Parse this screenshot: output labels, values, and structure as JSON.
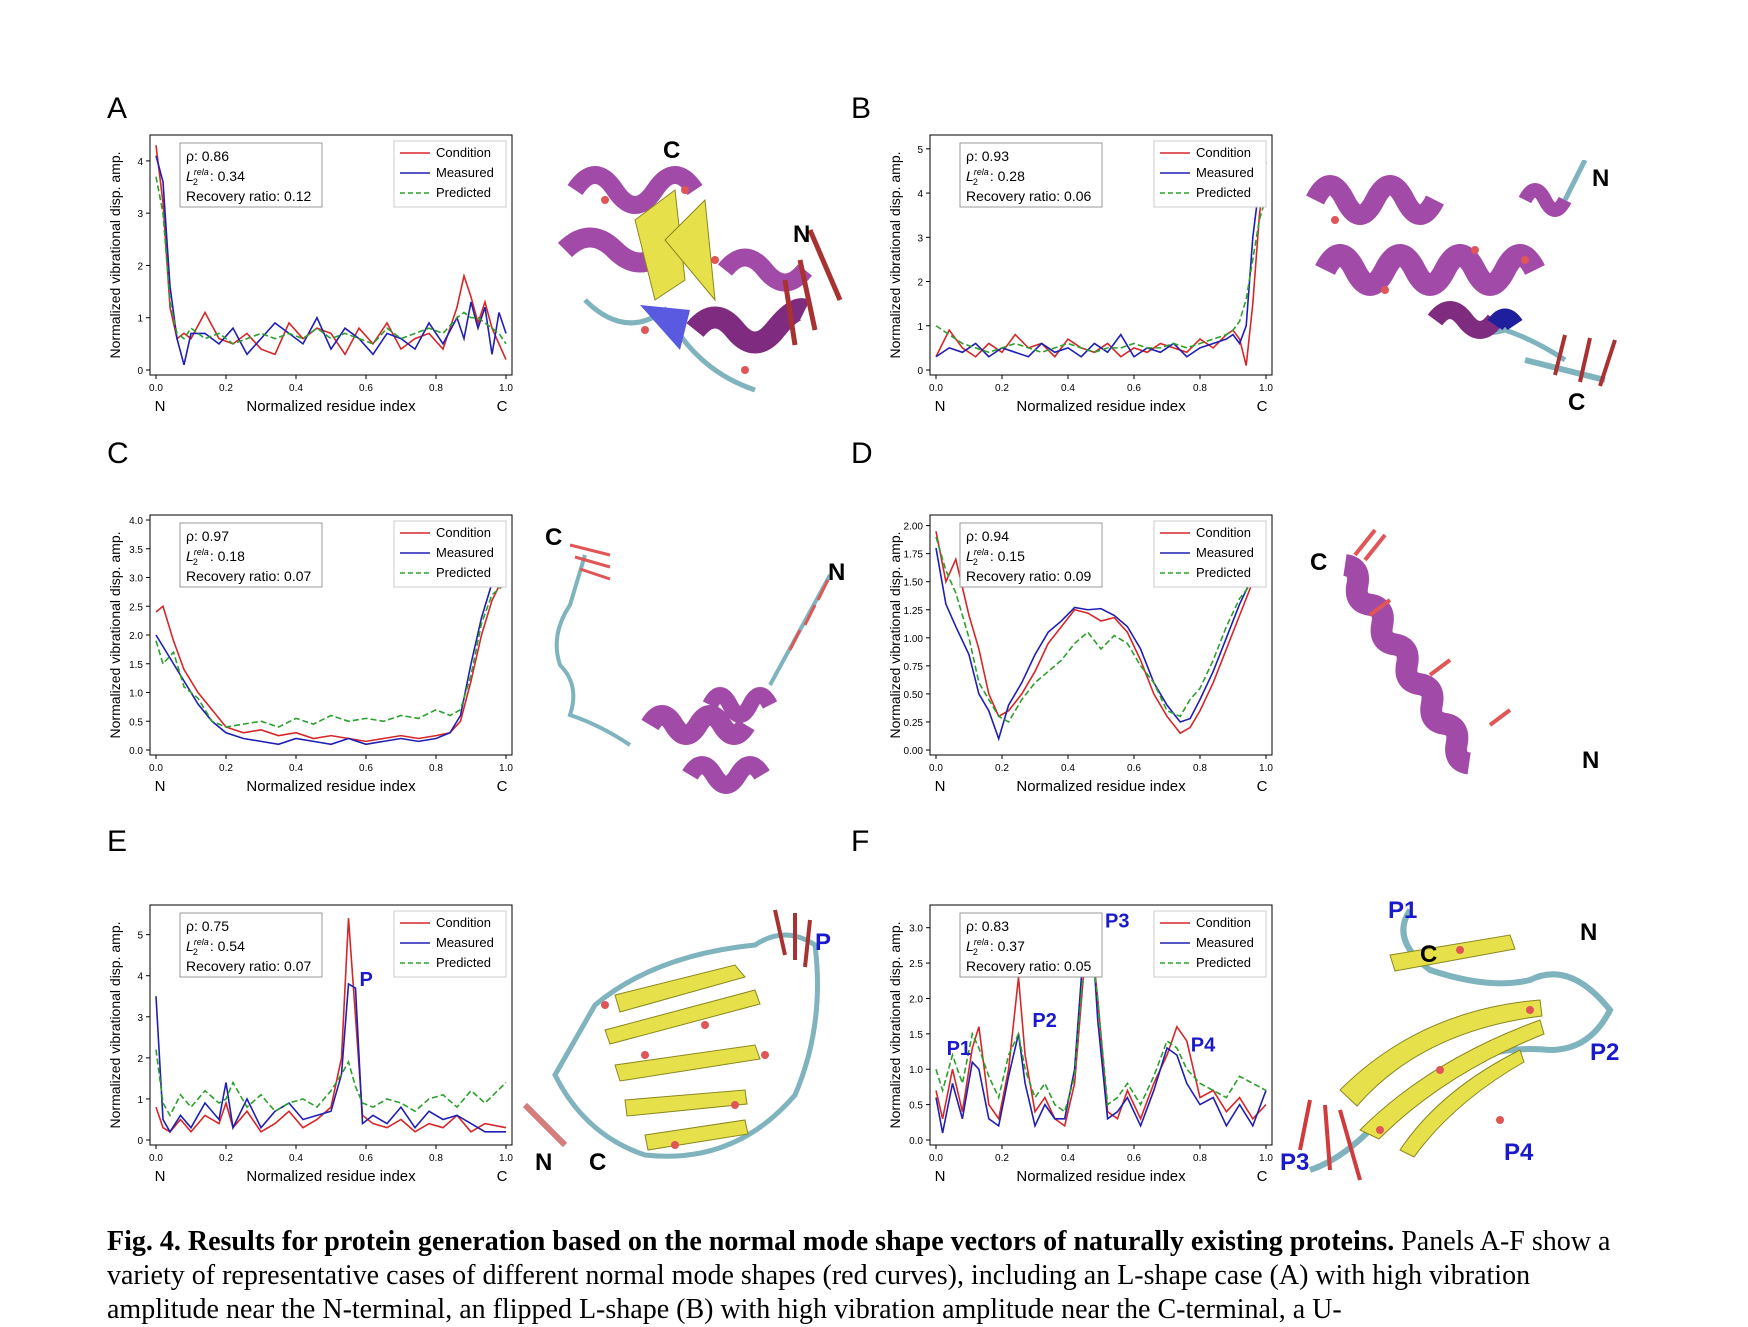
{
  "figure": {
    "caption_bold": "Fig. 4. Results for protein generation based on the normal mode shape vectors of naturally existing proteins.",
    "caption_text": " Panels A-F show a variety of representative cases of different normal mode shapes (red curves), including an L-shape case (A) with high vibration amplitude near the N-terminal, an flipped L-shape (B) with high vibration amplitude near the C-terminal, a U-"
  },
  "colors": {
    "condition": "#d62728",
    "measured": "#1f1fb4",
    "predicted": "#2ca02c",
    "helix": "#a24aa8",
    "sheet": "#e6e04a",
    "coil": "#7fb3bd",
    "arrow": "#e05555",
    "annot": "#1a1acc"
  },
  "panels": [
    {
      "letter": "A",
      "stats": {
        "rho": "ρ: 0.86",
        "l2": "0.34",
        "rec": "Recovery ratio: 0.12"
      },
      "legend": [
        "Condition",
        "Measured",
        "Predicted"
      ],
      "struct_labels": [
        "C",
        "N"
      ],
      "peak_labels": []
    },
    {
      "letter": "B",
      "stats": {
        "rho": "ρ: 0.93",
        "l2": "0.28",
        "rec": "Recovery ratio: 0.06"
      },
      "legend": [
        "Condition",
        "Measured",
        "Predicted"
      ],
      "struct_labels": [
        "N",
        "C"
      ],
      "peak_labels": []
    },
    {
      "letter": "C",
      "stats": {
        "rho": "ρ: 0.97",
        "l2": "0.18",
        "rec": "Recovery ratio: 0.07"
      },
      "legend": [
        "Condition",
        "Measured",
        "Predicted"
      ],
      "struct_labels": [
        "C",
        "N"
      ],
      "peak_labels": []
    },
    {
      "letter": "D",
      "stats": {
        "rho": "ρ: 0.94",
        "l2": "0.15",
        "rec": "Recovery ratio: 0.09"
      },
      "legend": [
        "Condition",
        "Measured",
        "Predicted"
      ],
      "struct_labels": [
        "C",
        "N"
      ],
      "peak_labels": []
    },
    {
      "letter": "E",
      "stats": {
        "rho": "ρ: 0.75",
        "l2": "0.54",
        "rec": "Recovery ratio: 0.07"
      },
      "legend": [
        "Condition",
        "Measured",
        "Predicted"
      ],
      "struct_labels": [
        "P",
        "N",
        "C"
      ],
      "peak_labels": [
        "P"
      ]
    },
    {
      "letter": "F",
      "stats": {
        "rho": "ρ: 0.83",
        "l2": "0.37",
        "rec": "Recovery ratio: 0.05"
      },
      "legend": [
        "Condition",
        "Measured",
        "Predicted"
      ],
      "struct_labels": [
        "P1",
        "C",
        "N",
        "P2",
        "P3",
        "P4"
      ],
      "peak_labels": [
        "P1",
        "P2",
        "P3",
        "P4"
      ]
    }
  ],
  "axis_common": {
    "ylabel": "Normalized vibrational disp. amp.",
    "xlabel": "Normalized residue index",
    "x_left": "N",
    "x_right": "C",
    "x_ticks": [
      "0.0",
      "0.2",
      "0.4",
      "0.6",
      "0.8",
      "1.0"
    ]
  },
  "chart_data": [
    {
      "type": "line",
      "panel": "A",
      "ylim": [
        0,
        4.4
      ],
      "y_ticks": [
        0,
        1,
        2,
        3,
        4
      ],
      "x": [
        0.0,
        0.02,
        0.04,
        0.06,
        0.08,
        0.1,
        0.14,
        0.18,
        0.22,
        0.26,
        0.3,
        0.34,
        0.38,
        0.42,
        0.46,
        0.5,
        0.54,
        0.58,
        0.62,
        0.66,
        0.7,
        0.74,
        0.78,
        0.82,
        0.86,
        0.88,
        0.9,
        0.92,
        0.94,
        0.96,
        0.98,
        1.0
      ],
      "series": [
        {
          "name": "Condition",
          "values": [
            4.3,
            3.2,
            1.2,
            0.6,
            0.7,
            0.6,
            1.1,
            0.6,
            0.5,
            0.7,
            0.4,
            0.3,
            0.9,
            0.6,
            0.8,
            0.7,
            0.3,
            0.8,
            0.5,
            0.9,
            0.4,
            0.6,
            0.7,
            0.4,
            1.2,
            1.8,
            1.4,
            0.9,
            1.3,
            0.8,
            0.5,
            0.2
          ]
        },
        {
          "name": "Measured",
          "values": [
            4.1,
            3.6,
            1.6,
            0.6,
            0.1,
            0.7,
            0.7,
            0.5,
            0.8,
            0.3,
            0.6,
            0.9,
            0.7,
            0.5,
            1.0,
            0.4,
            0.8,
            0.6,
            0.3,
            0.7,
            0.6,
            0.4,
            0.9,
            0.5,
            1.0,
            0.6,
            1.3,
            0.8,
            1.2,
            0.3,
            1.1,
            0.7
          ]
        },
        {
          "name": "Predicted",
          "values": [
            3.7,
            3.0,
            1.3,
            0.7,
            0.6,
            0.8,
            0.6,
            0.7,
            0.5,
            0.6,
            0.7,
            0.6,
            0.7,
            0.6,
            0.8,
            0.6,
            0.7,
            0.6,
            0.5,
            0.8,
            0.6,
            0.7,
            0.8,
            0.7,
            1.0,
            1.1,
            1.0,
            1.0,
            0.9,
            0.8,
            0.7,
            0.5
          ]
        }
      ]
    },
    {
      "type": "line",
      "panel": "B",
      "ylim": [
        0,
        5.2
      ],
      "y_ticks": [
        0,
        1,
        2,
        3,
        4,
        5
      ],
      "x": [
        0.0,
        0.04,
        0.08,
        0.12,
        0.16,
        0.2,
        0.24,
        0.28,
        0.32,
        0.36,
        0.4,
        0.44,
        0.48,
        0.52,
        0.56,
        0.6,
        0.64,
        0.68,
        0.72,
        0.76,
        0.8,
        0.84,
        0.88,
        0.9,
        0.92,
        0.94,
        0.96,
        0.98,
        1.0
      ],
      "series": [
        {
          "name": "Condition",
          "values": [
            0.3,
            0.9,
            0.5,
            0.3,
            0.6,
            0.4,
            0.8,
            0.5,
            0.6,
            0.3,
            0.7,
            0.5,
            0.4,
            0.6,
            0.3,
            0.5,
            0.4,
            0.6,
            0.5,
            0.4,
            0.7,
            0.5,
            0.8,
            0.9,
            0.7,
            0.1,
            1.5,
            3.5,
            4.7
          ]
        },
        {
          "name": "Measured",
          "values": [
            0.3,
            0.5,
            0.4,
            0.6,
            0.3,
            0.5,
            0.4,
            0.3,
            0.6,
            0.4,
            0.5,
            0.3,
            0.6,
            0.4,
            0.8,
            0.3,
            0.5,
            0.4,
            0.6,
            0.3,
            0.5,
            0.6,
            0.7,
            0.8,
            0.6,
            1.0,
            3.0,
            4.2,
            4.5
          ]
        },
        {
          "name": "Predicted",
          "values": [
            1.0,
            0.8,
            0.6,
            0.5,
            0.4,
            0.5,
            0.6,
            0.5,
            0.4,
            0.5,
            0.6,
            0.5,
            0.4,
            0.5,
            0.5,
            0.6,
            0.5,
            0.5,
            0.6,
            0.5,
            0.6,
            0.7,
            0.8,
            0.9,
            1.1,
            1.6,
            2.5,
            3.4,
            3.9
          ]
        }
      ]
    },
    {
      "type": "line",
      "panel": "C",
      "ylim": [
        0,
        4.0
      ],
      "y_ticks": [
        0.0,
        0.5,
        1.0,
        1.5,
        2.0,
        2.5,
        3.0,
        3.5,
        4.0
      ],
      "x": [
        0.0,
        0.02,
        0.05,
        0.08,
        0.12,
        0.16,
        0.2,
        0.25,
        0.3,
        0.35,
        0.4,
        0.45,
        0.5,
        0.55,
        0.6,
        0.65,
        0.7,
        0.75,
        0.8,
        0.84,
        0.87,
        0.9,
        0.93,
        0.96,
        1.0
      ],
      "series": [
        {
          "name": "Condition",
          "values": [
            2.4,
            2.5,
            1.9,
            1.4,
            1.0,
            0.7,
            0.4,
            0.3,
            0.35,
            0.25,
            0.3,
            0.2,
            0.25,
            0.2,
            0.15,
            0.2,
            0.25,
            0.2,
            0.25,
            0.3,
            0.5,
            1.2,
            2.0,
            2.6,
            3.1
          ]
        },
        {
          "name": "Measured",
          "values": [
            2.0,
            1.8,
            1.5,
            1.2,
            0.8,
            0.5,
            0.3,
            0.2,
            0.15,
            0.1,
            0.2,
            0.15,
            0.1,
            0.2,
            0.1,
            0.15,
            0.2,
            0.15,
            0.2,
            0.3,
            0.6,
            1.5,
            2.3,
            2.9,
            3.3
          ]
        },
        {
          "name": "Predicted",
          "values": [
            1.9,
            1.5,
            1.7,
            1.1,
            0.9,
            0.5,
            0.4,
            0.45,
            0.5,
            0.4,
            0.55,
            0.45,
            0.6,
            0.5,
            0.55,
            0.5,
            0.6,
            0.55,
            0.7,
            0.6,
            0.7,
            1.3,
            2.2,
            2.7,
            2.9
          ]
        }
      ]
    },
    {
      "type": "line",
      "panel": "D",
      "ylim": [
        0,
        2.05
      ],
      "y_ticks": [
        0.0,
        0.25,
        0.5,
        0.75,
        1.0,
        1.25,
        1.5,
        1.75,
        2.0
      ],
      "x": [
        0.0,
        0.03,
        0.06,
        0.1,
        0.13,
        0.16,
        0.19,
        0.22,
        0.26,
        0.3,
        0.34,
        0.38,
        0.42,
        0.46,
        0.5,
        0.54,
        0.58,
        0.62,
        0.66,
        0.7,
        0.74,
        0.77,
        0.8,
        0.84,
        0.88,
        0.92,
        0.96
      ],
      "series": [
        {
          "name": "Condition",
          "values": [
            1.95,
            1.5,
            1.7,
            1.2,
            0.9,
            0.5,
            0.3,
            0.35,
            0.5,
            0.7,
            0.95,
            1.1,
            1.25,
            1.22,
            1.15,
            1.18,
            1.05,
            0.8,
            0.5,
            0.3,
            0.15,
            0.2,
            0.35,
            0.6,
            0.9,
            1.2,
            1.5
          ]
        },
        {
          "name": "Measured",
          "values": [
            1.8,
            1.3,
            1.1,
            0.85,
            0.5,
            0.35,
            0.1,
            0.4,
            0.6,
            0.85,
            1.05,
            1.15,
            1.27,
            1.25,
            1.26,
            1.2,
            1.1,
            0.9,
            0.6,
            0.4,
            0.25,
            0.28,
            0.45,
            0.7,
            1.0,
            1.3,
            1.55
          ]
        },
        {
          "name": "Predicted",
          "values": [
            1.9,
            1.6,
            1.4,
            1.0,
            0.6,
            0.45,
            0.3,
            0.25,
            0.45,
            0.6,
            0.7,
            0.8,
            0.95,
            1.05,
            0.9,
            1.02,
            0.95,
            0.75,
            0.6,
            0.35,
            0.3,
            0.45,
            0.55,
            0.8,
            1.1,
            1.35,
            1.5
          ]
        }
      ]
    },
    {
      "type": "line",
      "panel": "E",
      "ylim": [
        0,
        5.6
      ],
      "y_ticks": [
        0,
        1,
        2,
        3,
        4,
        5
      ],
      "x": [
        0.0,
        0.02,
        0.04,
        0.07,
        0.1,
        0.14,
        0.18,
        0.2,
        0.22,
        0.26,
        0.3,
        0.34,
        0.38,
        0.42,
        0.46,
        0.5,
        0.53,
        0.55,
        0.57,
        0.59,
        0.62,
        0.66,
        0.7,
        0.74,
        0.78,
        0.82,
        0.86,
        0.9,
        0.94,
        1.0
      ],
      "series": [
        {
          "name": "Condition",
          "values": [
            0.8,
            0.3,
            0.2,
            0.5,
            0.2,
            0.6,
            0.4,
            0.9,
            0.3,
            0.7,
            0.2,
            0.4,
            0.7,
            0.3,
            0.5,
            0.8,
            2.0,
            5.4,
            3.0,
            0.6,
            0.4,
            0.3,
            0.5,
            0.2,
            0.4,
            0.3,
            0.6,
            0.2,
            0.4,
            0.3
          ]
        },
        {
          "name": "Measured",
          "values": [
            3.5,
            0.5,
            0.2,
            0.6,
            0.3,
            0.9,
            0.5,
            1.4,
            0.3,
            1.0,
            0.3,
            0.7,
            0.9,
            0.5,
            0.6,
            0.7,
            1.6,
            3.8,
            3.7,
            0.4,
            0.6,
            0.4,
            0.8,
            0.3,
            0.7,
            0.5,
            0.6,
            0.4,
            0.2,
            0.2
          ]
        },
        {
          "name": "Predicted",
          "values": [
            2.2,
            0.9,
            0.6,
            1.1,
            0.8,
            1.2,
            0.9,
            1.0,
            1.4,
            0.8,
            1.1,
            0.7,
            0.9,
            1.0,
            0.8,
            1.2,
            1.6,
            1.9,
            1.3,
            0.9,
            0.8,
            1.0,
            0.9,
            0.7,
            1.0,
            1.1,
            0.8,
            1.2,
            0.9,
            1.4
          ]
        }
      ]
    },
    {
      "type": "line",
      "panel": "F",
      "ylim": [
        0,
        3.25
      ],
      "y_ticks": [
        0.0,
        0.5,
        1.0,
        1.5,
        2.0,
        2.5,
        3.0
      ],
      "x": [
        0.0,
        0.02,
        0.05,
        0.08,
        0.11,
        0.13,
        0.16,
        0.19,
        0.22,
        0.25,
        0.27,
        0.3,
        0.33,
        0.36,
        0.39,
        0.42,
        0.45,
        0.47,
        0.49,
        0.52,
        0.55,
        0.58,
        0.62,
        0.66,
        0.7,
        0.73,
        0.76,
        0.8,
        0.84,
        0.88,
        0.92,
        0.96,
        1.0
      ],
      "series": [
        {
          "name": "Condition",
          "values": [
            0.7,
            0.3,
            1.0,
            0.4,
            1.3,
            1.6,
            0.5,
            0.3,
            1.0,
            2.3,
            1.2,
            0.4,
            0.6,
            0.3,
            0.2,
            0.8,
            2.5,
            2.9,
            2.0,
            0.4,
            0.3,
            0.7,
            0.3,
            0.8,
            1.2,
            1.6,
            1.4,
            0.6,
            0.7,
            0.4,
            0.6,
            0.3,
            0.5
          ]
        },
        {
          "name": "Measured",
          "values": [
            0.6,
            0.1,
            0.8,
            0.3,
            1.1,
            1.0,
            0.3,
            0.2,
            0.9,
            1.5,
            0.8,
            0.2,
            0.5,
            0.3,
            0.3,
            1.0,
            2.9,
            3.15,
            1.7,
            0.3,
            0.4,
            0.6,
            0.2,
            0.7,
            1.3,
            1.2,
            0.8,
            0.5,
            0.6,
            0.2,
            0.5,
            0.2,
            0.7
          ]
        },
        {
          "name": "Predicted",
          "values": [
            1.0,
            0.7,
            1.2,
            0.8,
            1.5,
            1.3,
            0.9,
            0.6,
            1.2,
            1.5,
            1.0,
            0.6,
            0.8,
            0.5,
            0.4,
            0.9,
            2.6,
            2.8,
            2.0,
            0.5,
            0.6,
            0.8,
            0.5,
            0.9,
            1.4,
            1.3,
            1.0,
            0.8,
            0.7,
            0.6,
            0.9,
            0.8,
            0.7
          ]
        }
      ]
    }
  ]
}
